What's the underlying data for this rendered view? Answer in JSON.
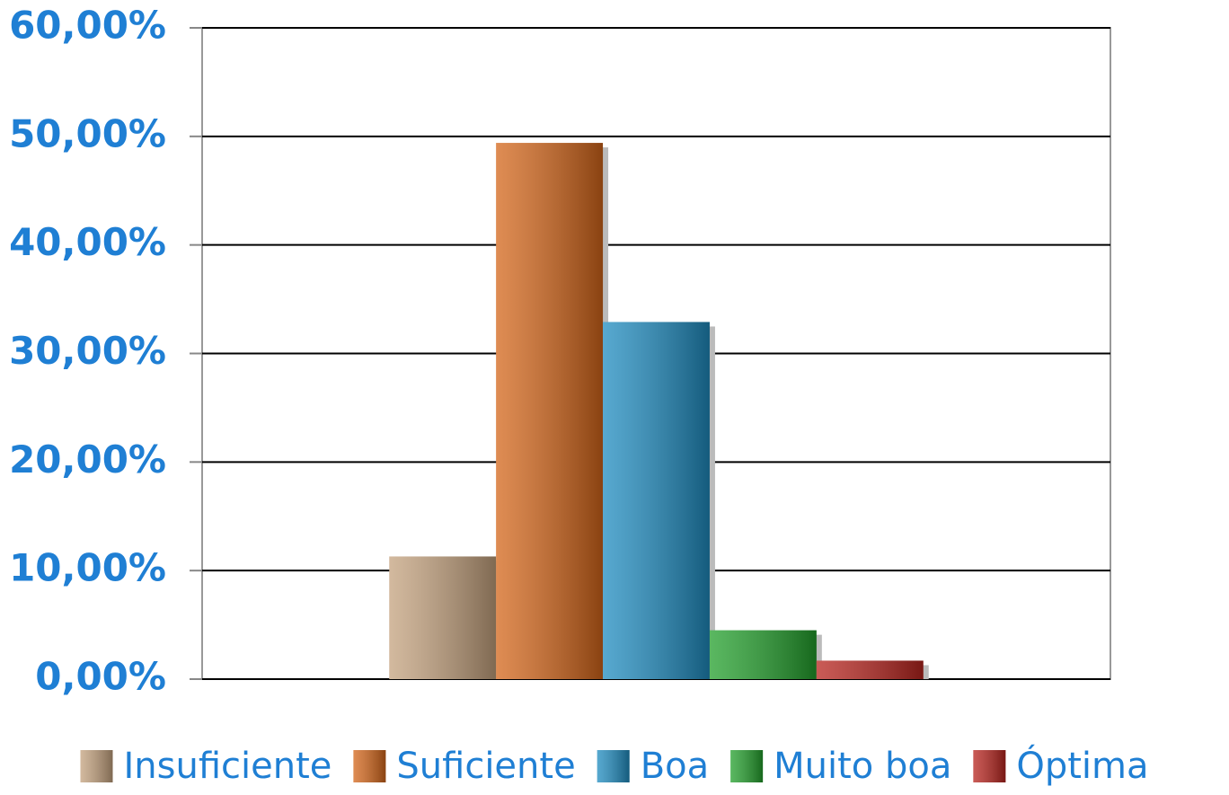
{
  "chart_data": {
    "type": "bar",
    "categories": [
      null
    ],
    "series": [
      {
        "name": "Insuficiente",
        "color": "#c4a27e",
        "values": [
          11.3
        ]
      },
      {
        "name": "Suficiente",
        "color": "#d4661a",
        "values": [
          49.4
        ]
      },
      {
        "name": "Boa",
        "color": "#1f8cc0",
        "values": [
          32.9
        ]
      },
      {
        "name": "Muito boa",
        "color": "#23a02c",
        "values": [
          4.5
        ]
      },
      {
        "name": "Óptima",
        "color": "#b8241e",
        "values": [
          1.7
        ]
      }
    ],
    "ylim": [
      0,
      60
    ],
    "yticks": [
      {
        "value": 0,
        "label": "0,00%"
      },
      {
        "value": 10,
        "label": "10,00%"
      },
      {
        "value": 20,
        "label": "20,00%"
      },
      {
        "value": 30,
        "label": "30,00%"
      },
      {
        "value": 40,
        "label": "40,00%"
      },
      {
        "value": 50,
        "label": "50,00%"
      },
      {
        "value": 60,
        "label": "60,00%"
      }
    ],
    "grid": true,
    "legend": "bottom"
  }
}
